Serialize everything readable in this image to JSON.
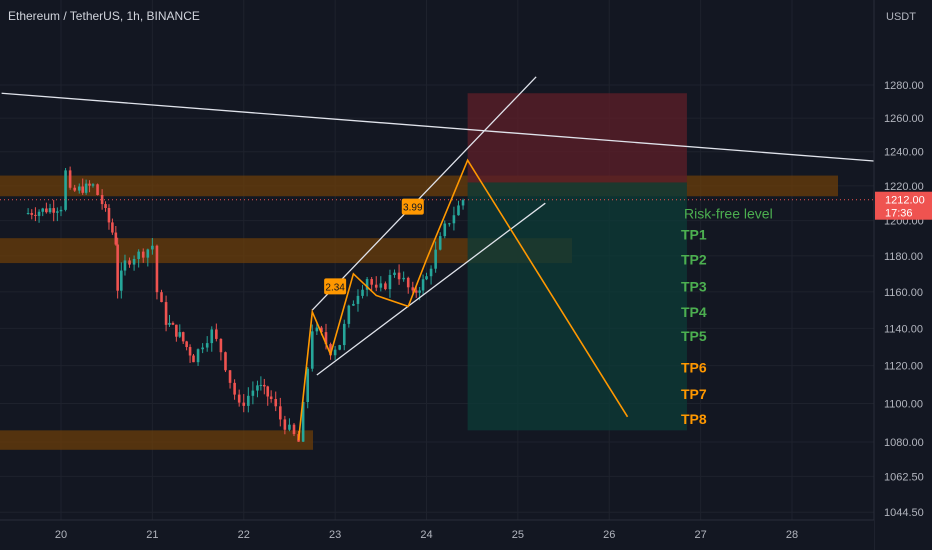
{
  "header": {
    "symbol_line": "Ethereum / TetherUS, 1h, BINANCE"
  },
  "price_axis": {
    "unit": "USDT",
    "last_price_label": "1212.00",
    "countdown": "17:36"
  },
  "chart_data": {
    "type": "candlestick",
    "title": "Ethereum / TetherUS, 1h, BINANCE",
    "y_unit": "USDT",
    "ylim": [
      1040,
      1300
    ],
    "y_scale": "log",
    "y_ticks": [
      1280.0,
      1260.0,
      1240.0,
      1220.0,
      1200.0,
      1180.0,
      1160.0,
      1140.0,
      1120.0,
      1100.0,
      1080.0,
      1062.5,
      1044.5
    ],
    "x_ticks": [
      "20",
      "21",
      "22",
      "23",
      "24",
      "25",
      "26",
      "27",
      "28"
    ],
    "grid": true,
    "last_price": 1212.0,
    "price_path": [
      [
        19.6,
        1204
      ],
      [
        19.8,
        1206
      ],
      [
        20.0,
        1208
      ],
      [
        20.05,
        1228
      ],
      [
        20.1,
        1216
      ],
      [
        20.2,
        1218
      ],
      [
        20.35,
        1220
      ],
      [
        20.45,
        1210
      ],
      [
        20.6,
        1188
      ],
      [
        20.62,
        1162
      ],
      [
        20.7,
        1176
      ],
      [
        20.8,
        1180
      ],
      [
        20.9,
        1182
      ],
      [
        21.0,
        1186
      ],
      [
        21.05,
        1160
      ],
      [
        21.15,
        1144
      ],
      [
        21.3,
        1136
      ],
      [
        21.45,
        1124
      ],
      [
        21.55,
        1132
      ],
      [
        21.65,
        1138
      ],
      [
        21.75,
        1128
      ],
      [
        21.85,
        1112
      ],
      [
        21.95,
        1098
      ],
      [
        22.05,
        1104
      ],
      [
        22.15,
        1110
      ],
      [
        22.3,
        1102
      ],
      [
        22.4,
        1092
      ],
      [
        22.5,
        1086
      ],
      [
        22.6,
        1080
      ],
      [
        22.65,
        1098
      ],
      [
        22.75,
        1140
      ],
      [
        22.85,
        1136
      ],
      [
        22.95,
        1128
      ],
      [
        23.05,
        1132
      ],
      [
        23.15,
        1150
      ],
      [
        23.25,
        1160
      ],
      [
        23.35,
        1168
      ],
      [
        23.45,
        1160
      ],
      [
        23.55,
        1164
      ],
      [
        23.65,
        1172
      ],
      [
        23.75,
        1166
      ],
      [
        23.85,
        1158
      ],
      [
        24.0,
        1168
      ],
      [
        24.1,
        1182
      ],
      [
        24.2,
        1196
      ],
      [
        24.3,
        1204
      ],
      [
        24.4,
        1212
      ]
    ],
    "zones": [
      {
        "name": "resistance-zone-upper",
        "from": 1214,
        "to": 1226,
        "color": "#6b3d0a"
      },
      {
        "name": "resistance-zone-mid",
        "from": 1176,
        "to": 1190,
        "color": "#6b3d0a"
      },
      {
        "name": "support-zone",
        "from": 1076,
        "to": 1086,
        "color": "#6b3d0a"
      }
    ],
    "trendlines": [
      {
        "name": "descending-trendline",
        "x": [
          19.35,
          29.5
        ],
        "y": [
          1275,
          1232
        ],
        "color": "#e0e3eb"
      },
      {
        "name": "channel-upper-line",
        "x": [
          22.75,
          25.2
        ],
        "y": [
          1150,
          1285
        ],
        "color": "#e0e3eb"
      },
      {
        "name": "channel-lower-line",
        "x": [
          22.8,
          25.3
        ],
        "y": [
          1115,
          1210
        ],
        "color": "#e0e3eb"
      }
    ],
    "wave_path": {
      "color": "#ff9800",
      "points": [
        [
          22.6,
          1081
        ],
        [
          22.75,
          1149
        ],
        [
          22.95,
          1126
        ],
        [
          23.2,
          1170
        ],
        [
          23.45,
          1158
        ],
        [
          23.8,
          1152
        ],
        [
          24.0,
          1178
        ],
        [
          24.45,
          1235
        ],
        [
          26.2,
          1093
        ]
      ],
      "labels": [
        {
          "text": "2.34",
          "x": 23.0,
          "y": 1163
        },
        {
          "text": "3.99",
          "x": 23.85,
          "y": 1208
        }
      ]
    },
    "position": {
      "x_start": 24.45,
      "x_end": 26.85,
      "entry": 1222,
      "stop": 1275,
      "target": 1086,
      "risk_color": "#5a1e28",
      "reward_color": "#0d3a36"
    },
    "annotations": [
      {
        "text": "Risk-free level",
        "y": 1204,
        "color": "#4caf50"
      },
      {
        "text": "TP1",
        "y": 1192,
        "color": "#4caf50"
      },
      {
        "text": "TP2",
        "y": 1178,
        "color": "#4caf50"
      },
      {
        "text": "TP3",
        "y": 1163,
        "color": "#4caf50"
      },
      {
        "text": "TP4",
        "y": 1149,
        "color": "#4caf50"
      },
      {
        "text": "TP5",
        "y": 1136,
        "color": "#4caf50"
      },
      {
        "text": "TP6",
        "y": 1119,
        "color": "#ff9800"
      },
      {
        "text": "TP7",
        "y": 1105,
        "color": "#ff9800"
      },
      {
        "text": "TP8",
        "y": 1092,
        "color": "#ff9800"
      }
    ]
  },
  "colors": {
    "background": "#131722",
    "grid": "#1e222d",
    "axis_text": "#b2b5be",
    "up": "#26a69a",
    "down": "#ef5350",
    "accent_orange": "#ff9800",
    "price_tag": "#ef5350"
  }
}
